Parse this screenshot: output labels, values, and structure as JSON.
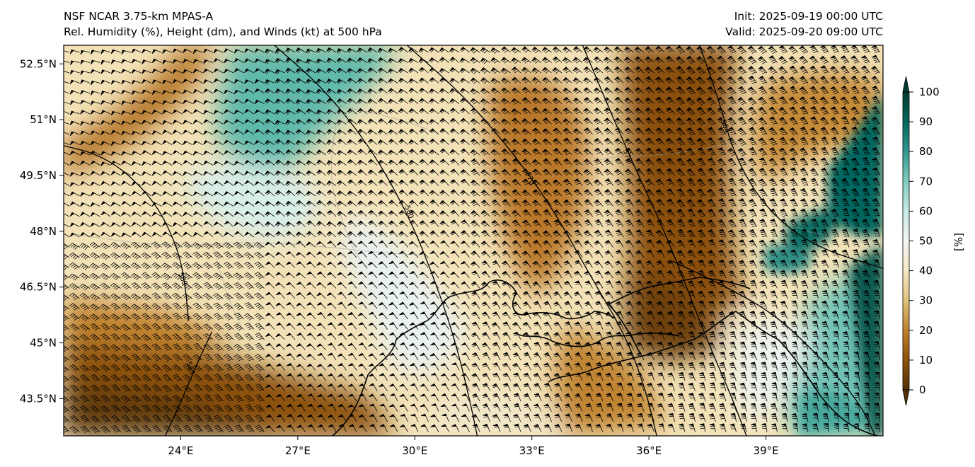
{
  "header": {
    "model_line": "NSF NCAR 3.75-km MPAS-A",
    "field_line": "Rel. Humidity (%), Height (dm), and Winds (kt) at 500 hPa",
    "init_line": "Init: 2025-09-19 00:00 UTC",
    "valid_line": "Valid: 2025-09-20 09:00 UTC"
  },
  "map": {
    "lon_range": [
      21.0,
      42.0
    ],
    "lat_range": [
      42.5,
      53.0
    ],
    "lon_ticks": [
      {
        "value": 24,
        "label": "24°E"
      },
      {
        "value": 27,
        "label": "27°E"
      },
      {
        "value": 30,
        "label": "30°E"
      },
      {
        "value": 33,
        "label": "33°E"
      },
      {
        "value": 36,
        "label": "36°E"
      },
      {
        "value": 39,
        "label": "39°E"
      }
    ],
    "lat_ticks": [
      {
        "value": 52.5,
        "label": "52.5°N"
      },
      {
        "value": 51.0,
        "label": "51°N"
      },
      {
        "value": 49.5,
        "label": "49.5°N"
      },
      {
        "value": 48.0,
        "label": "48°N"
      },
      {
        "value": 46.5,
        "label": "46.5°N"
      },
      {
        "value": 45.0,
        "label": "45°N"
      },
      {
        "value": 43.5,
        "label": "43.5°N"
      }
    ],
    "height_contours": [
      {
        "label": "588",
        "label_pos": [
          24.0,
          46.7
        ],
        "points": [
          [
            21.0,
            50.3
          ],
          [
            21.8,
            50.1
          ],
          [
            22.6,
            49.6
          ],
          [
            23.4,
            48.7
          ],
          [
            23.9,
            47.6
          ],
          [
            24.1,
            46.7
          ],
          [
            24.2,
            45.6
          ]
        ]
      },
      {
        "label": "588",
        "label_pos": [
          24.2,
          44.3
        ],
        "points": [
          [
            24.8,
            45.3
          ],
          [
            24.4,
            44.4
          ],
          [
            24.0,
            43.4
          ],
          [
            23.6,
            42.5
          ]
        ]
      },
      {
        "label": "580",
        "label_pos": [
          29.8,
          48.5
        ],
        "points": [
          [
            26.4,
            53.0
          ],
          [
            27.7,
            51.8
          ],
          [
            28.9,
            50.2
          ],
          [
            29.8,
            48.5
          ],
          [
            30.4,
            47.0
          ],
          [
            31.0,
            45.2
          ],
          [
            31.4,
            43.5
          ],
          [
            31.6,
            42.5
          ]
        ]
      },
      {
        "label": "570",
        "label_pos": [
          32.9,
          49.4
        ],
        "points": [
          [
            29.8,
            53.0
          ],
          [
            31.3,
            51.6
          ],
          [
            32.6,
            50.0
          ],
          [
            33.6,
            48.5
          ],
          [
            34.5,
            46.8
          ],
          [
            35.4,
            45.2
          ],
          [
            35.9,
            43.8
          ],
          [
            36.2,
            42.5
          ]
        ]
      },
      {
        "label": "570",
        "label_pos": [
          35.4,
          50.0
        ],
        "points": [
          [
            34.3,
            53.0
          ],
          [
            34.9,
            51.5
          ],
          [
            35.6,
            49.8
          ],
          [
            36.4,
            48.0
          ],
          [
            37.0,
            46.4
          ],
          [
            37.6,
            44.8
          ],
          [
            38.1,
            43.6
          ],
          [
            38.5,
            42.5
          ]
        ]
      },
      {
        "label": "564",
        "label_pos": [
          37.9,
          50.8
        ],
        "points": [
          [
            37.3,
            53.0
          ],
          [
            37.8,
            51.5
          ],
          [
            38.2,
            50.0
          ],
          [
            39.0,
            48.6
          ],
          [
            40.2,
            47.6
          ],
          [
            42.0,
            47.0
          ]
        ]
      },
      {
        "label": "",
        "label_pos": null,
        "points": [
          [
            36.6,
            47.2
          ],
          [
            37.8,
            46.6
          ],
          [
            39.2,
            45.8
          ],
          [
            40.4,
            44.6
          ],
          [
            41.4,
            43.4
          ],
          [
            41.8,
            42.5
          ]
        ]
      }
    ],
    "wind_field": {
      "u_kt": [
        40,
        70
      ],
      "v_kt": [
        -10,
        30
      ]
    }
  },
  "colorbar": {
    "ticks": [
      0,
      10,
      20,
      30,
      40,
      50,
      60,
      70,
      80,
      90,
      100
    ],
    "unit_label": "[%]",
    "colors": [
      "#543005",
      "#8c510a",
      "#bf812d",
      "#dfc27d",
      "#f6e8c3",
      "#f5f5f5",
      "#c7eae5",
      "#80cdc1",
      "#35978f",
      "#01665e",
      "#003c30"
    ]
  }
}
